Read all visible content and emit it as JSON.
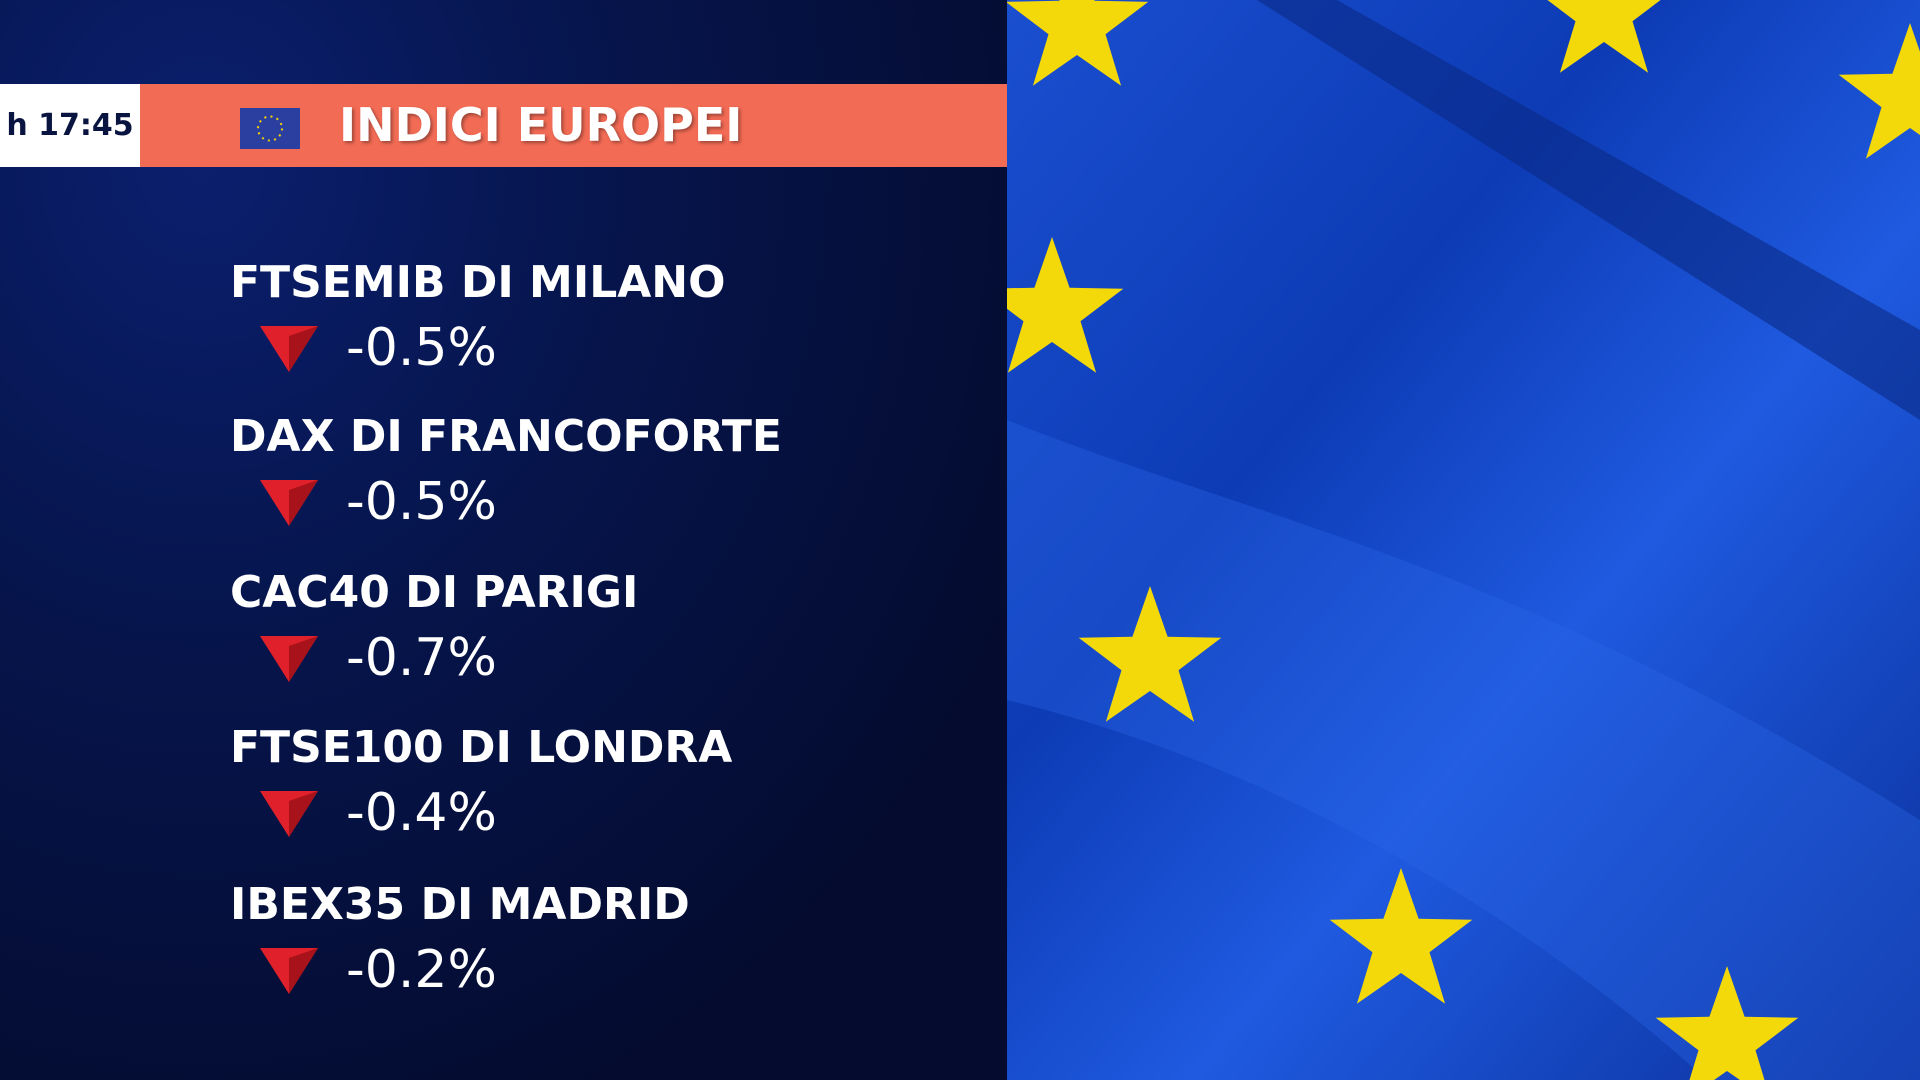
{
  "header": {
    "time": "h 17:45",
    "title": "INDICI EUROPEI"
  },
  "indices": [
    {
      "name": "FTSEMIB DI MILANO",
      "change": "-0.5%"
    },
    {
      "name": "DAX DI FRANCOFORTE",
      "change": "-0.5%"
    },
    {
      "name": "CAC40 DI PARIGI",
      "change": "-0.7%"
    },
    {
      "name": "FTSE100 DI LONDRA",
      "change": "-0.4%"
    },
    {
      "name": "IBEX35 DI MADRID",
      "change": "-0.2%"
    }
  ]
}
